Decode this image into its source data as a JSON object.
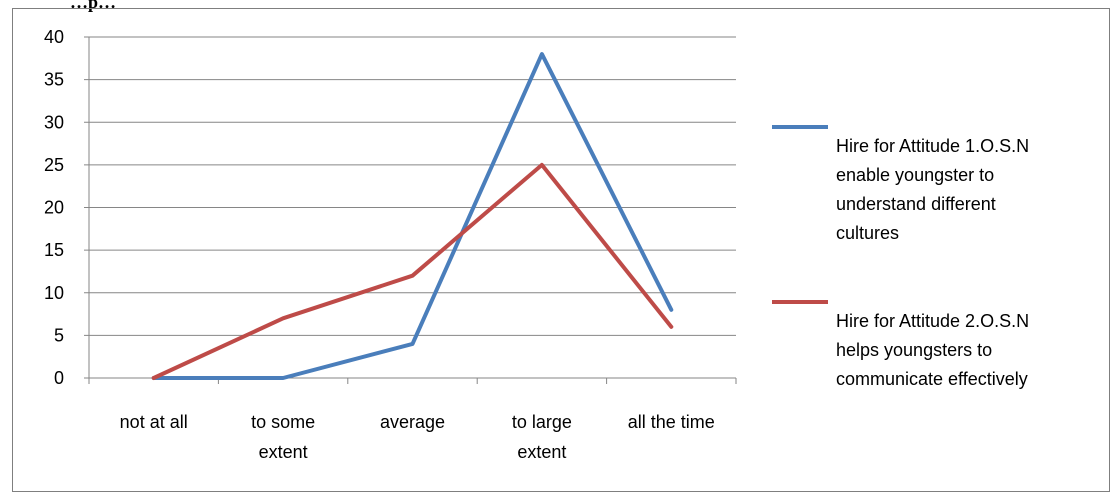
{
  "page": {
    "top_text": "…p…"
  },
  "chart_data": {
    "type": "line",
    "categories": [
      [
        "not at all"
      ],
      [
        "to some",
        "extent"
      ],
      [
        "average"
      ],
      [
        "to large",
        "extent"
      ],
      [
        "all the time"
      ]
    ],
    "series": [
      {
        "name_lines": [
          "Hire for Attitude 1.O.S.N",
          "enable youngster to",
          "understand  different",
          "cultures"
        ],
        "values": [
          0,
          0,
          4,
          38,
          8
        ],
        "color": "#4a7ebb"
      },
      {
        "name_lines": [
          "Hire for Attitude 2.O.S.N",
          "helps youngsters to",
          "communicate effectively"
        ],
        "values": [
          0,
          7,
          12,
          25,
          6
        ],
        "color": "#be4b48"
      }
    ],
    "ylim": [
      0,
      40
    ],
    "yticks": [
      0,
      5,
      10,
      15,
      20,
      25,
      30,
      35,
      40
    ],
    "grid": true,
    "legend": "right",
    "title": "",
    "xlabel": "",
    "ylabel": ""
  }
}
